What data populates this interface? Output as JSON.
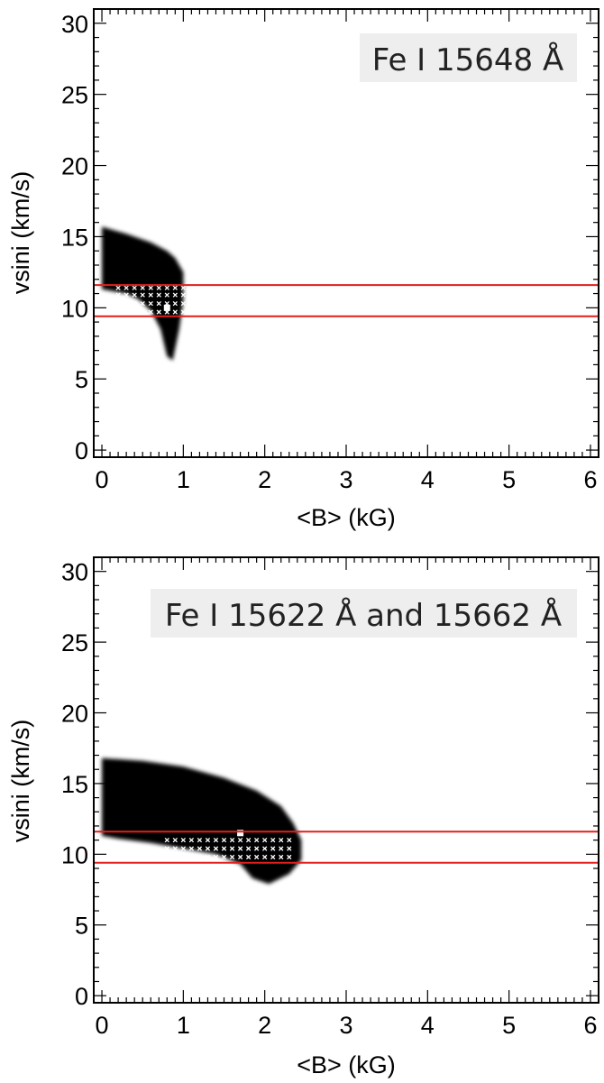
{
  "chart_data": [
    {
      "type": "heatmap",
      "title": "",
      "annotation": "Fe I 15648 Å",
      "xlabel": "<B> (kG)",
      "ylabel": "vsini (km/s)",
      "xlim": [
        -0.1,
        6.1
      ],
      "ylim": [
        -0.5,
        31
      ],
      "xticks": [
        "0",
        "1",
        "2",
        "3",
        "4",
        "5",
        "6"
      ],
      "yticks": [
        "0",
        "5",
        "10",
        "15",
        "20",
        "25",
        "30"
      ],
      "hlines": [
        11.6,
        9.4
      ],
      "hline_color": "#e0201c",
      "region": {
        "left": [
          [
            0.0,
            15.7
          ],
          [
            0.3,
            15.2
          ],
          [
            0.6,
            14.6
          ],
          [
            0.8,
            14.0
          ]
        ],
        "right": [
          [
            0.8,
            14.0
          ],
          [
            0.9,
            13.5
          ],
          [
            1.0,
            12.5
          ],
          [
            1.0,
            10.5
          ],
          [
            0.95,
            8.5
          ],
          [
            0.87,
            6.3
          ],
          [
            0.8,
            6.6
          ],
          [
            0.72,
            8.5
          ],
          [
            0.6,
            9.8
          ],
          [
            0.45,
            10.6
          ],
          [
            0.3,
            11.0
          ],
          [
            0.0,
            11.3
          ]
        ]
      },
      "best_fit_cells": {
        "x": [
          0.2,
          0.3,
          0.4,
          0.5,
          0.6,
          0.7,
          0.8,
          0.9,
          1.0
        ],
        "y": [
          9.7,
          10.3,
          10.9,
          11.4
        ],
        "best": [
          0.8,
          10.0
        ]
      }
    },
    {
      "type": "heatmap",
      "title": "",
      "annotation": "Fe I 15622 Å and 15662 Å",
      "xlabel": "<B> (kG)",
      "ylabel": "vsini (km/s)",
      "xlim": [
        -0.1,
        6.1
      ],
      "ylim": [
        -0.5,
        31
      ],
      "xticks": [
        "0",
        "1",
        "2",
        "3",
        "4",
        "5",
        "6"
      ],
      "yticks": [
        "0",
        "5",
        "10",
        "15",
        "20",
        "25",
        "30"
      ],
      "hlines": [
        11.6,
        9.4
      ],
      "hline_color": "#e0201c",
      "region": {
        "left": [
          [
            0.0,
            16.8
          ],
          [
            0.5,
            16.6
          ],
          [
            1.0,
            16.2
          ],
          [
            1.5,
            15.4
          ],
          [
            1.9,
            14.5
          ],
          [
            2.2,
            13.4
          ]
        ],
        "right": [
          [
            2.2,
            13.4
          ],
          [
            2.35,
            12.2
          ],
          [
            2.45,
            11.0
          ],
          [
            2.45,
            9.6
          ],
          [
            2.3,
            8.6
          ],
          [
            2.05,
            7.9
          ],
          [
            1.85,
            8.3
          ],
          [
            1.7,
            9.3
          ],
          [
            1.4,
            10.0
          ],
          [
            1.0,
            10.4
          ],
          [
            0.6,
            10.8
          ],
          [
            0.2,
            11.1
          ],
          [
            0.0,
            11.3
          ]
        ]
      },
      "best_fit_cells": {
        "x": [
          0.8,
          0.9,
          1.0,
          1.1,
          1.2,
          1.3,
          1.4,
          1.5,
          1.6,
          1.7,
          1.8,
          1.9,
          2.0,
          2.1,
          2.2,
          2.3
        ],
        "y": [
          9.8,
          10.4,
          11.0
        ],
        "best": [
          1.7,
          11.5
        ]
      }
    }
  ]
}
